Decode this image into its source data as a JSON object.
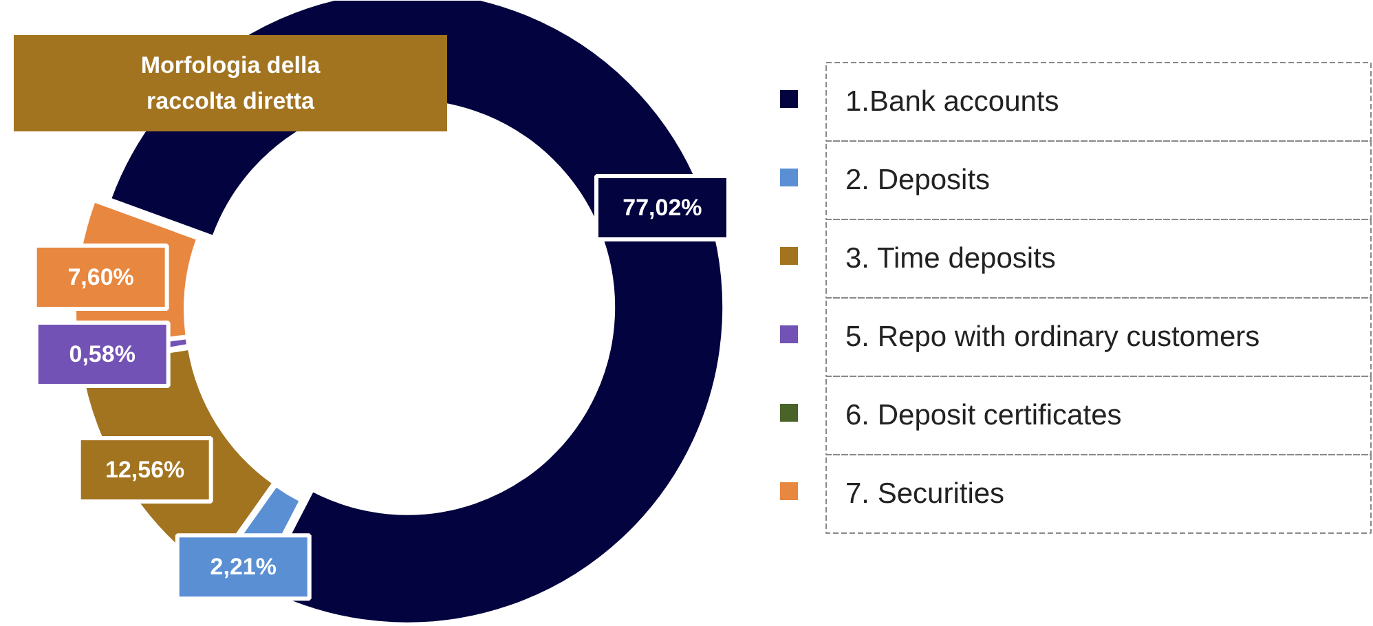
{
  "chart_data": {
    "type": "donut",
    "title": "Morfologia della raccolta diretta",
    "categories": [
      "1.Bank accounts",
      "2. Deposits",
      "3. Time deposits",
      "5. Repo with ordinary customers",
      "6. Deposit certificates",
      "7. Securities"
    ],
    "values": [
      77.02,
      2.21,
      12.56,
      0.58,
      null,
      7.6
    ],
    "colors": [
      "#03033f",
      "#5a8fd4",
      "#a27420",
      "#7352b5",
      "#4a6328",
      "#e8873f"
    ],
    "value_labels": [
      "77,02%",
      "2,21%",
      "12,56%",
      "0,58%",
      null,
      "7,60%"
    ],
    "legend": "right"
  }
}
